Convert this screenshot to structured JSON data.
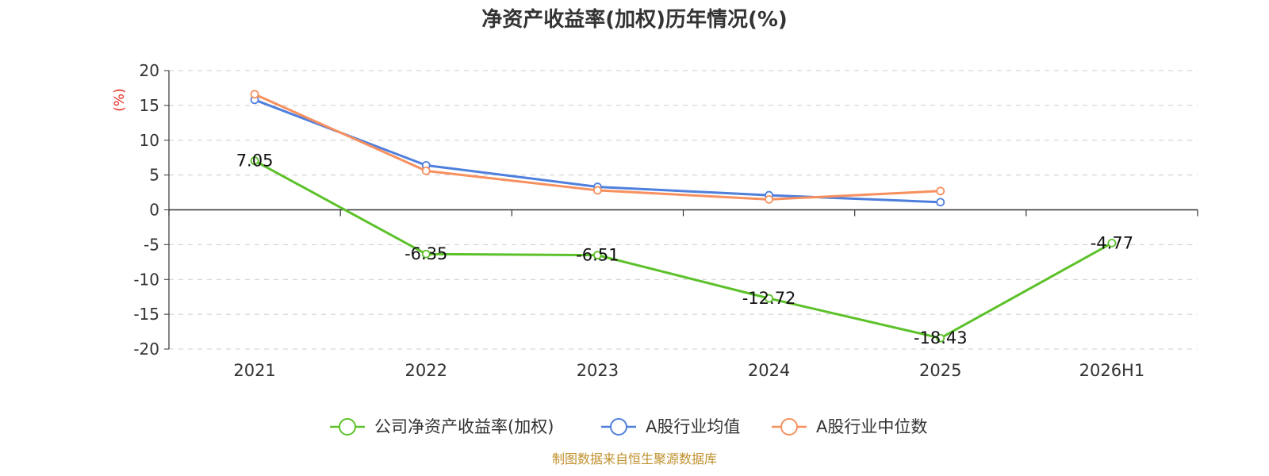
{
  "chart_data": {
    "type": "line",
    "title": "净资产收益率(加权)历年情况(%)",
    "ylabel": "(%)",
    "categories": [
      "2021",
      "2022",
      "2023",
      "2024",
      "2025",
      "2026H1"
    ],
    "ylim": [
      -20,
      20
    ],
    "yticks": [
      "20",
      "15",
      "10",
      "5",
      "0",
      "-5",
      "-10",
      "-15",
      "-20"
    ],
    "grid": true,
    "legend_position": "bottom",
    "series": [
      {
        "name": "公司净资产收益率(加权)",
        "color": "#5cc12a",
        "values": [
          7.05,
          -6.35,
          -6.51,
          -12.72,
          -18.43,
          -4.77
        ],
        "labels": [
          "7.05",
          "-6.35",
          "-6.51",
          "-12.72",
          "-18.43",
          "-4.77"
        ]
      },
      {
        "name": "A股行业均值",
        "color": "#4f7fdc",
        "values": [
          15.8,
          6.4,
          3.3,
          2.1,
          1.1,
          null
        ]
      },
      {
        "name": "A股行业中位数",
        "color": "#f7905f",
        "values": [
          16.6,
          5.6,
          2.8,
          1.5,
          2.7,
          null
        ]
      }
    ],
    "source": "制图数据来自恒生聚源数据库"
  }
}
